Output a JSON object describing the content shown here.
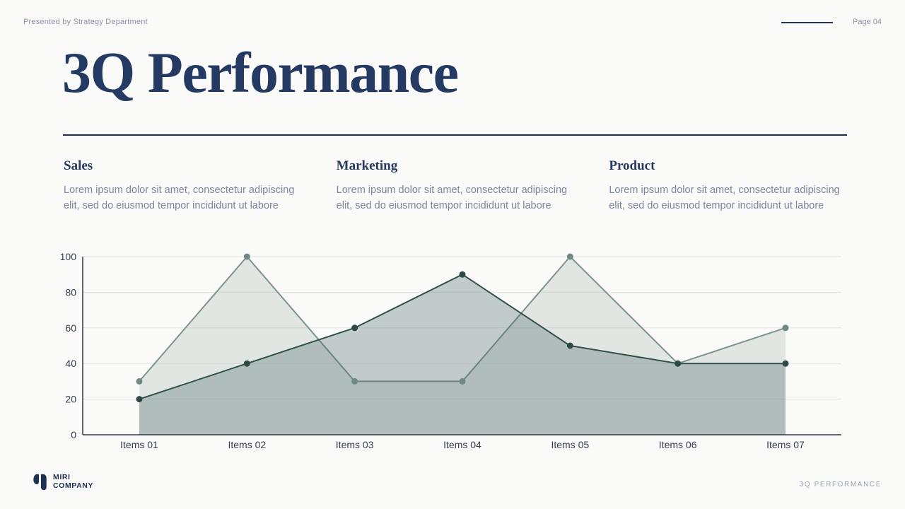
{
  "header": {
    "presented_by": "Presented by Strategy Department",
    "page_label": "Page 04"
  },
  "title": "3Q Performance",
  "sections": [
    {
      "heading": "Sales",
      "body": "Lorem ipsum dolor sit amet, consectetur adipiscing elit, sed do eiusmod tempor incididunt ut labore"
    },
    {
      "heading": "Marketing",
      "body": "Lorem ipsum dolor sit amet, consectetur adipiscing elit, sed do eiusmod tempor incididunt ut labore"
    },
    {
      "heading": "Product",
      "body": "Lorem ipsum dolor sit amet, consectetur adipiscing elit, sed do eiusmod tempor incididunt ut labore"
    }
  ],
  "chart_data": {
    "type": "area",
    "title": "",
    "xlabel": "",
    "ylabel": "",
    "categories": [
      "Items 01",
      "Items 02",
      "Items 03",
      "Items 04",
      "Items 05",
      "Items 06",
      "Items 07"
    ],
    "series": [
      {
        "name": "series-light-sage",
        "values": [
          30,
          100,
          30,
          30,
          100,
          40,
          60
        ],
        "line_color": "#7d948d",
        "fill_color": "rgba(125,148,141,0.20)",
        "marker_color": "#6f8a86"
      },
      {
        "name": "series-dark-teal",
        "values": [
          20,
          40,
          60,
          90,
          50,
          40,
          40
        ],
        "line_color": "#32504a",
        "fill_color": "rgba(66,95,97,0.30)",
        "marker_color": "#2e4a46"
      }
    ],
    "ylim": [
      0,
      100
    ],
    "yticks": [
      0,
      20,
      40,
      60,
      80,
      100
    ],
    "grid": "horizontal",
    "legend": "none"
  },
  "footer": {
    "company_line1": "MIRI",
    "company_line2": "COMPANY",
    "slide_label": "3Q PERFORMANCE"
  },
  "colors": {
    "background": "#fafaf9",
    "navy_accent": "#253a63",
    "muted_text": "#8d92a8",
    "grid_line": "#e3e4e7",
    "axis_line": "#343945"
  }
}
